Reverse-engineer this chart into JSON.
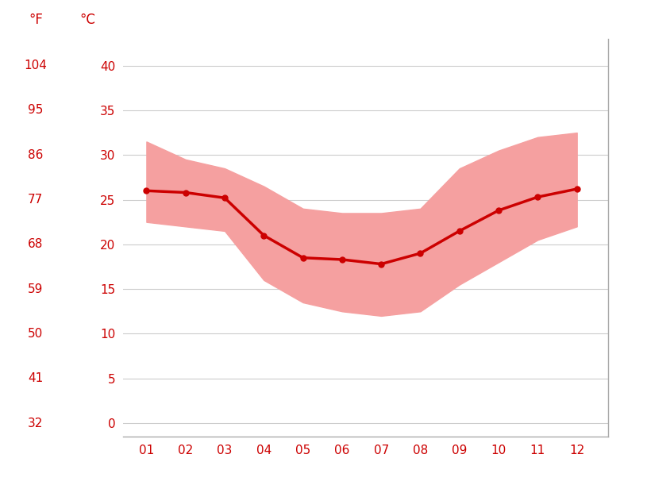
{
  "months": [
    1,
    2,
    3,
    4,
    5,
    6,
    7,
    8,
    9,
    10,
    11,
    12
  ],
  "month_labels": [
    "01",
    "02",
    "03",
    "04",
    "05",
    "06",
    "07",
    "08",
    "09",
    "10",
    "11",
    "12"
  ],
  "mean_temp": [
    26.0,
    25.8,
    25.2,
    21.0,
    18.5,
    18.3,
    17.8,
    19.0,
    21.5,
    23.8,
    25.3,
    26.2
  ],
  "max_temp": [
    31.5,
    29.5,
    28.5,
    26.5,
    24.0,
    23.5,
    23.5,
    24.0,
    28.5,
    30.5,
    32.0,
    32.5
  ],
  "min_temp": [
    22.5,
    22.0,
    21.5,
    16.0,
    13.5,
    12.5,
    12.0,
    12.5,
    15.5,
    18.0,
    20.5,
    22.0
  ],
  "line_color": "#cc0000",
  "fill_color": "#f5a0a0",
  "bg_color": "#ffffff",
  "grid_color": "#cccccc",
  "axis_color": "#cc0000",
  "label_f": "°F",
  "label_c": "°C",
  "yticks_c": [
    0,
    5,
    10,
    15,
    20,
    25,
    30,
    35,
    40
  ],
  "yticks_f": [
    32,
    41,
    50,
    59,
    68,
    77,
    86,
    95,
    104
  ],
  "ylim_c": [
    -1.5,
    43
  ],
  "xlim": [
    0.4,
    12.8
  ],
  "figsize": [
    8.15,
    6.11
  ],
  "dpi": 100
}
